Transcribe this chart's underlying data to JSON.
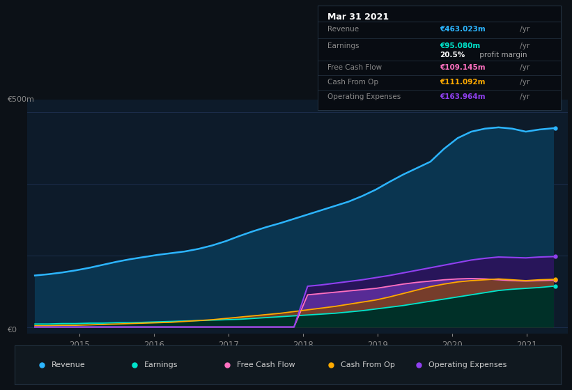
{
  "bg_color": "#0c1117",
  "plot_bg_color": "#0d1b2a",
  "ylabel_top": "€500m",
  "ylabel_bottom": "€0",
  "x_ticks": [
    2015,
    2016,
    2017,
    2018,
    2019,
    2020,
    2021
  ],
  "x_min": 2014.3,
  "x_max": 2021.55,
  "y_min": -15,
  "y_max": 530,
  "grid_color": "#1e3050",
  "revenue_color": "#2cb5ff",
  "revenue_fill": "#0a3550",
  "earnings_color": "#00e5cc",
  "earnings_fill": "#003028",
  "fcf_color": "#ff70c0",
  "fcf_fill": "#6030a0",
  "cashfromop_color": "#ffaa00",
  "cashfromop_fill": "#7a4020",
  "opex_color": "#9040f0",
  "opex_fill": "#28155a",
  "legend_bg": "#10181f",
  "legend_border": "#253545",
  "tooltip_bg": "#080c12",
  "tooltip_border": "#253545",
  "revenue_label": "Revenue",
  "earnings_label": "Earnings",
  "fcf_label": "Free Cash Flow",
  "cashfromop_label": "Cash From Op",
  "opex_label": "Operating Expenses",
  "tooltip_date": "Mar 31 2021",
  "tooltip_revenue_val": "€463.023m",
  "tooltip_earnings_val": "€95.080m",
  "tooltip_profit_margin": "20.5%",
  "tooltip_profit_suffix": " profit margin",
  "tooltip_fcf_val": "€109.145m",
  "tooltip_cashfromop_val": "€111.092m",
  "tooltip_opex_val": "€163.964m",
  "revenue_data": [
    120,
    123,
    127,
    132,
    138,
    145,
    152,
    158,
    163,
    168,
    172,
    176,
    182,
    190,
    200,
    212,
    223,
    233,
    242,
    252,
    262,
    272,
    282,
    292,
    305,
    320,
    338,
    355,
    370,
    385,
    415,
    440,
    455,
    462,
    465,
    462,
    455,
    460,
    463
  ],
  "earnings_data": [
    7,
    7,
    8,
    8,
    9,
    9,
    10,
    10,
    11,
    12,
    13,
    14,
    15,
    16,
    17,
    18,
    20,
    22,
    24,
    26,
    28,
    30,
    32,
    35,
    38,
    42,
    46,
    50,
    55,
    60,
    65,
    70,
    75,
    80,
    85,
    88,
    90,
    92,
    95
  ],
  "fcf_data": [
    0,
    0,
    0,
    0,
    0,
    0,
    0,
    0,
    0,
    0,
    0,
    0,
    0,
    0,
    0,
    0,
    0,
    0,
    0,
    0,
    75,
    78,
    81,
    84,
    87,
    90,
    95,
    100,
    104,
    107,
    110,
    112,
    113,
    112,
    110,
    108,
    107,
    108,
    109
  ],
  "cashfromop_data": [
    3,
    3,
    4,
    4,
    5,
    6,
    7,
    8,
    9,
    10,
    11,
    13,
    15,
    17,
    20,
    23,
    26,
    29,
    32,
    36,
    40,
    44,
    48,
    53,
    58,
    63,
    70,
    78,
    86,
    94,
    100,
    105,
    108,
    110,
    112,
    110,
    108,
    110,
    111
  ],
  "opex_data": [
    0,
    0,
    0,
    0,
    0,
    0,
    0,
    0,
    0,
    0,
    0,
    0,
    0,
    0,
    0,
    0,
    0,
    0,
    0,
    0,
    95,
    98,
    102,
    106,
    110,
    115,
    120,
    126,
    132,
    138,
    144,
    150,
    156,
    160,
    163,
    162,
    161,
    163,
    164
  ],
  "n_points": 39,
  "x_start": 2014.4,
  "x_end": 2021.35
}
